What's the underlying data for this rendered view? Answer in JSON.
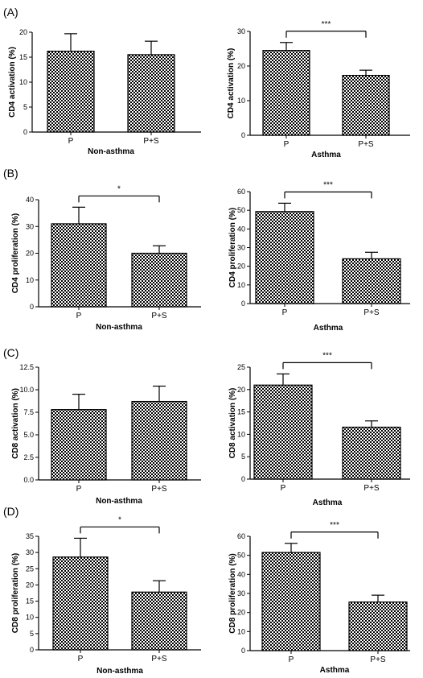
{
  "panels": [
    {
      "label": "(A)"
    },
    {
      "label": "(B)"
    },
    {
      "label": "(C)"
    },
    {
      "label": "(D)"
    }
  ],
  "chart_data": [
    {
      "type": "bar",
      "panel": "(A)",
      "categories": [
        "P",
        "P+S"
      ],
      "values": [
        16.2,
        15.5
      ],
      "errors": [
        3.5,
        2.7
      ],
      "xlabel": "Non-asthma",
      "ylabel": "CD4 activation (%)",
      "ylim": [
        0,
        20
      ],
      "yticks": [
        0,
        5,
        10,
        15,
        20
      ],
      "significance": ""
    },
    {
      "type": "bar",
      "panel": "(A)",
      "categories": [
        "P",
        "P+S"
      ],
      "values": [
        24.5,
        17.3
      ],
      "errors": [
        2.3,
        1.5
      ],
      "xlabel": "Asthma",
      "ylabel": "CD4 activation (%)",
      "ylim": [
        0,
        30
      ],
      "yticks": [
        0,
        10,
        20,
        30
      ],
      "significance": "***"
    },
    {
      "type": "bar",
      "panel": "(B)",
      "categories": [
        "P",
        "P+S"
      ],
      "values": [
        31,
        20
      ],
      "errors": [
        6.2,
        2.8
      ],
      "xlabel": "Non-asthma",
      "ylabel": "CD4 proliferation (%)",
      "ylim": [
        0,
        40
      ],
      "yticks": [
        0,
        10,
        20,
        30,
        40
      ],
      "significance": "*"
    },
    {
      "type": "bar",
      "panel": "(B)",
      "categories": [
        "P",
        "P+S"
      ],
      "values": [
        49.3,
        24
      ],
      "errors": [
        4.5,
        3.5
      ],
      "xlabel": "Asthma",
      "ylabel": "CD4 proliferation (%)",
      "ylim": [
        0,
        60
      ],
      "yticks": [
        0,
        10,
        20,
        30,
        40,
        50,
        60
      ],
      "significance": "***"
    },
    {
      "type": "bar",
      "panel": "(C)",
      "categories": [
        "P",
        "P+S"
      ],
      "values": [
        7.8,
        8.7
      ],
      "errors": [
        1.7,
        1.7
      ],
      "xlabel": "Non-asthma",
      "ylabel": "CD8 activation (%)",
      "ylim": [
        0,
        12.5
      ],
      "yticks": [
        0.0,
        2.5,
        5.0,
        7.5,
        10.0,
        12.5
      ],
      "tickDecimals": 1,
      "significance": ""
    },
    {
      "type": "bar",
      "panel": "(C)",
      "categories": [
        "P",
        "P+S"
      ],
      "values": [
        21,
        11.6
      ],
      "errors": [
        2.5,
        1.4
      ],
      "xlabel": "Asthma",
      "ylabel": "CD8 activation (%)",
      "ylim": [
        0,
        25
      ],
      "yticks": [
        0,
        5,
        10,
        15,
        20,
        25
      ],
      "significance": "***"
    },
    {
      "type": "bar",
      "panel": "(D)",
      "categories": [
        "P",
        "P+S"
      ],
      "values": [
        28.6,
        17.8
      ],
      "errors": [
        5.8,
        3.5
      ],
      "xlabel": "Non-asthma",
      "ylabel": "CD8 proliferation (%)",
      "ylim": [
        0,
        35
      ],
      "yticks": [
        0,
        5,
        10,
        15,
        20,
        25,
        30,
        35
      ],
      "significance": "*"
    },
    {
      "type": "bar",
      "panel": "(D)",
      "categories": [
        "P",
        "P+S"
      ],
      "values": [
        51.5,
        25.5
      ],
      "errors": [
        4.8,
        3.6
      ],
      "xlabel": "Asthma",
      "ylabel": "CD8 proliferation (%)",
      "ylim": [
        0,
        60
      ],
      "yticks": [
        0,
        10,
        20,
        30,
        40,
        50,
        60
      ],
      "significance": "***"
    }
  ]
}
